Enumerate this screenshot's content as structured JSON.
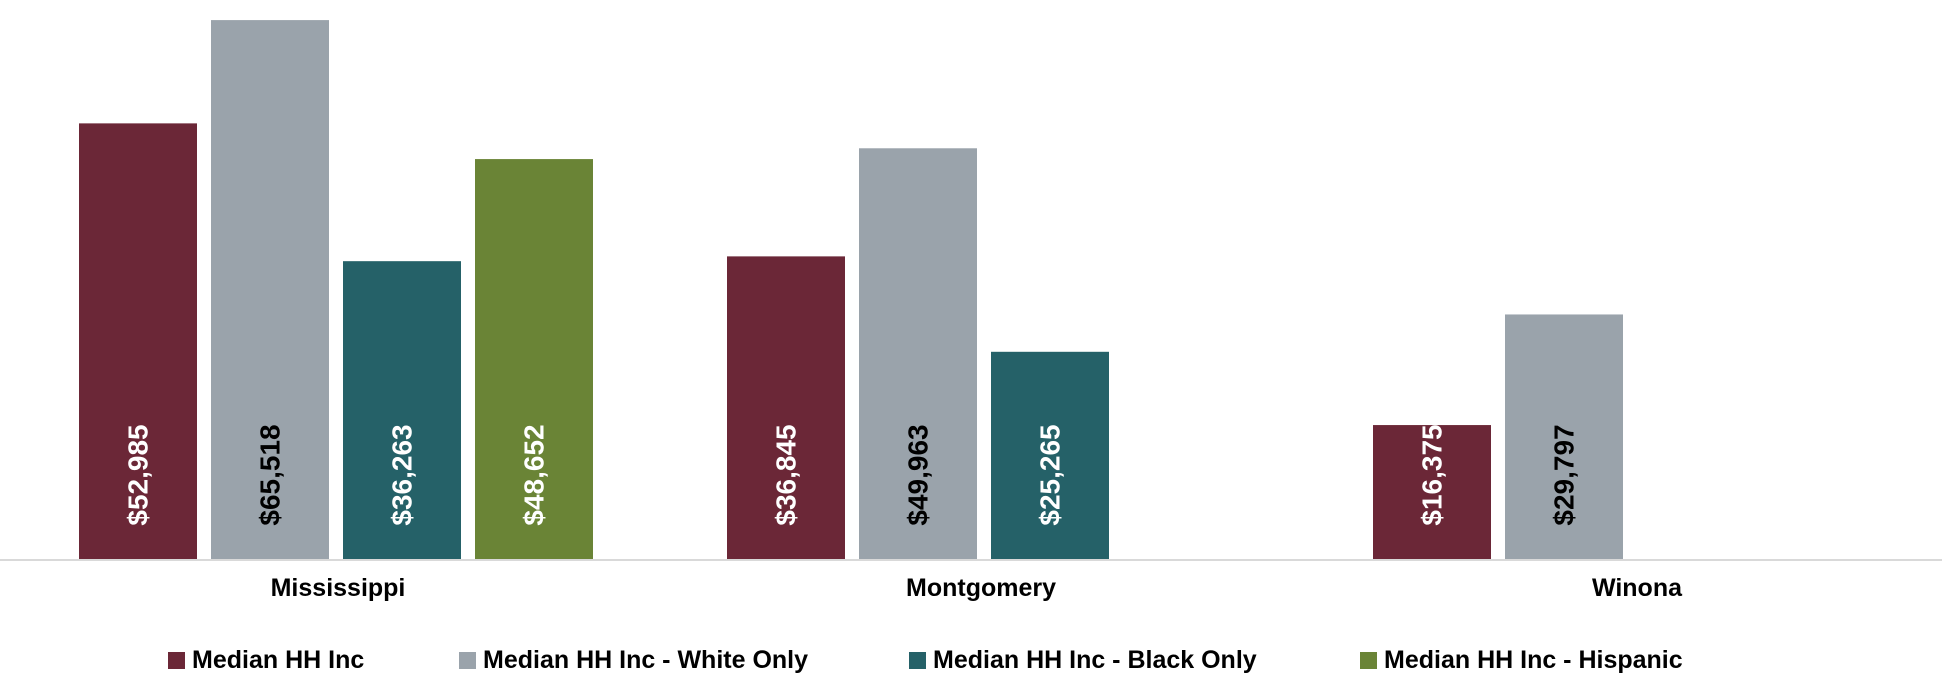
{
  "chart_data": {
    "type": "bar",
    "title": "",
    "xlabel": "",
    "ylabel": "",
    "ylim": [
      0,
      66500
    ],
    "categories": [
      "Mississippi",
      "Montgomery",
      "Winona"
    ],
    "series": [
      {
        "name": "Median HH Inc",
        "color": "#6B2737",
        "labelColor": "#ffffff",
        "values": [
          52985,
          36845,
          16375
        ],
        "labels": [
          "$52,985",
          "$36,845",
          "$16,375"
        ]
      },
      {
        "name": "Median HH Inc - White Only",
        "color": "#9AA3AB",
        "labelColor": "#000000",
        "values": [
          65518,
          49963,
          29797
        ],
        "labels": [
          "$65,518",
          "$49,963",
          "$29,797"
        ]
      },
      {
        "name": "Median HH Inc - Black Only",
        "color": "#256168",
        "labelColor": "#ffffff",
        "values": [
          36263,
          25265,
          null
        ],
        "labels": [
          "$36,263",
          "$25,265",
          ""
        ]
      },
      {
        "name": "Median HH Inc - Hispanic",
        "color": "#6A8436",
        "labelColor": "#ffffff",
        "values": [
          48652,
          null,
          null
        ],
        "labels": [
          "$48,652",
          "",
          ""
        ]
      }
    ],
    "grid": false,
    "legend": "bottom"
  }
}
